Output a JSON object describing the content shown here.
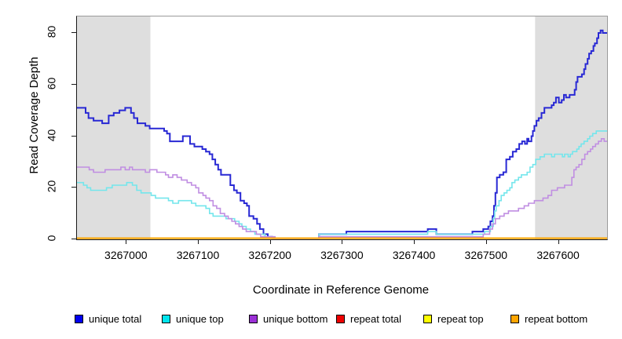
{
  "figure": {
    "x_axis_label": "Coordinate in Reference Genome",
    "y_axis_label": "Read Coverage Depth"
  },
  "legend": {
    "items": [
      {
        "label": "unique total",
        "color": "#0000EE"
      },
      {
        "label": "unique top",
        "color": "#00E5EE"
      },
      {
        "label": "unique bottom",
        "color": "#9B30D6"
      },
      {
        "label": "repeat total",
        "color": "#EE0000"
      },
      {
        "label": "repeat top",
        "color": "#FFFF00"
      },
      {
        "label": "repeat bottom",
        "color": "#FFA500"
      }
    ]
  },
  "chart_data": {
    "type": "line",
    "subtype": "step",
    "title": "",
    "xlabel": "Coordinate in Reference Genome",
    "ylabel": "Read Coverage Depth",
    "xlim": [
      3266931,
      3267667
    ],
    "ylim": [
      0,
      86.4
    ],
    "x_ticks": [
      3267000,
      3267100,
      3267200,
      3267300,
      3267400,
      3267500,
      3267600
    ],
    "y_ticks": [
      0,
      20,
      40,
      60,
      80
    ],
    "grid": false,
    "legend_position": "bottom",
    "shaded_region_color": "#DEDEDE",
    "shaded_regions": [
      {
        "from": 3266931,
        "to": 3267033
      },
      {
        "from": 3267567,
        "to": 3267667
      }
    ],
    "series": [
      {
        "name": "unique total",
        "line_color": "#2828D4",
        "width": 2,
        "points": [
          [
            3266931,
            51
          ],
          [
            3266943,
            49
          ],
          [
            3266947,
            47
          ],
          [
            3266954,
            46
          ],
          [
            3266966,
            45
          ],
          [
            3266975,
            48
          ],
          [
            3266982,
            49
          ],
          [
            3266990,
            50
          ],
          [
            3266998,
            51
          ],
          [
            3267006,
            49
          ],
          [
            3267010,
            47
          ],
          [
            3267015,
            45
          ],
          [
            3267026,
            44
          ],
          [
            3267032,
            43
          ],
          [
            3267052,
            42
          ],
          [
            3267056,
            41
          ],
          [
            3267060,
            38
          ],
          [
            3267078,
            40
          ],
          [
            3267088,
            37
          ],
          [
            3267094,
            36
          ],
          [
            3267105,
            35
          ],
          [
            3267110,
            34
          ],
          [
            3267115,
            33
          ],
          [
            3267119,
            31
          ],
          [
            3267123,
            29
          ],
          [
            3267127,
            27
          ],
          [
            3267131,
            25
          ],
          [
            3267144,
            21
          ],
          [
            3267149,
            19
          ],
          [
            3267153,
            18
          ],
          [
            3267158,
            15
          ],
          [
            3267163,
            14
          ],
          [
            3267167,
            13
          ],
          [
            3267170,
            9
          ],
          [
            3267176,
            8
          ],
          [
            3267181,
            6
          ],
          [
            3267185,
            4
          ],
          [
            3267190,
            2
          ],
          [
            3267196,
            1
          ],
          [
            3267202,
            0
          ],
          [
            3267267,
            2
          ],
          [
            3267305,
            3
          ],
          [
            3267418,
            4
          ],
          [
            3267430,
            2
          ],
          [
            3267480,
            3
          ],
          [
            3267495,
            4
          ],
          [
            3267502,
            5
          ],
          [
            3267505,
            7
          ],
          [
            3267508,
            9
          ],
          [
            3267510,
            13
          ],
          [
            3267512,
            18
          ],
          [
            3267514,
            24
          ],
          [
            3267518,
            25
          ],
          [
            3267523,
            26
          ],
          [
            3267527,
            31
          ],
          [
            3267532,
            32
          ],
          [
            3267536,
            34
          ],
          [
            3267541,
            35
          ],
          [
            3267545,
            37
          ],
          [
            3267549,
            38
          ],
          [
            3267553,
            37
          ],
          [
            3267556,
            39
          ],
          [
            3267558,
            38
          ],
          [
            3267562,
            40
          ],
          [
            3267564,
            42
          ],
          [
            3267566,
            44
          ],
          [
            3267569,
            46
          ],
          [
            3267572,
            47
          ],
          [
            3267576,
            49
          ],
          [
            3267580,
            51
          ],
          [
            3267590,
            52
          ],
          [
            3267593,
            53
          ],
          [
            3267596,
            55
          ],
          [
            3267600,
            53
          ],
          [
            3267604,
            54
          ],
          [
            3267607,
            56
          ],
          [
            3267610,
            55
          ],
          [
            3267615,
            56
          ],
          [
            3267622,
            58
          ],
          [
            3267624,
            61
          ],
          [
            3267626,
            63
          ],
          [
            3267632,
            64
          ],
          [
            3267635,
            66
          ],
          [
            3267637,
            68
          ],
          [
            3267640,
            70
          ],
          [
            3267642,
            72
          ],
          [
            3267645,
            73
          ],
          [
            3267648,
            75
          ],
          [
            3267650,
            76
          ],
          [
            3267653,
            78
          ],
          [
            3267655,
            80
          ],
          [
            3267658,
            81
          ],
          [
            3267661,
            80
          ],
          [
            3267667,
            80
          ]
        ]
      },
      {
        "name": "unique top",
        "line_color": "#74E6EC",
        "width": 1.6,
        "points": [
          [
            3266931,
            22
          ],
          [
            3266940,
            21
          ],
          [
            3266945,
            20
          ],
          [
            3266950,
            19
          ],
          [
            3266972,
            20
          ],
          [
            3266980,
            21
          ],
          [
            3267000,
            22
          ],
          [
            3267008,
            21
          ],
          [
            3267014,
            19
          ],
          [
            3267020,
            18
          ],
          [
            3267034,
            17
          ],
          [
            3267040,
            16
          ],
          [
            3267058,
            15
          ],
          [
            3267064,
            14
          ],
          [
            3267072,
            15
          ],
          [
            3267090,
            14
          ],
          [
            3267096,
            13
          ],
          [
            3267110,
            12
          ],
          [
            3267115,
            10
          ],
          [
            3267120,
            9
          ],
          [
            3267138,
            8
          ],
          [
            3267150,
            7
          ],
          [
            3267156,
            6
          ],
          [
            3267160,
            5
          ],
          [
            3267166,
            4
          ],
          [
            3267172,
            3
          ],
          [
            3267178,
            2
          ],
          [
            3267192,
            1
          ],
          [
            3267200,
            0
          ],
          [
            3267267,
            2
          ],
          [
            3267418,
            3
          ],
          [
            3267430,
            2
          ],
          [
            3267497,
            3
          ],
          [
            3267505,
            5
          ],
          [
            3267509,
            8
          ],
          [
            3267511,
            11
          ],
          [
            3267513,
            13
          ],
          [
            3267517,
            15
          ],
          [
            3267520,
            17
          ],
          [
            3267524,
            18
          ],
          [
            3267528,
            19
          ],
          [
            3267532,
            20
          ],
          [
            3267535,
            22
          ],
          [
            3267539,
            23
          ],
          [
            3267544,
            24
          ],
          [
            3267548,
            25
          ],
          [
            3267556,
            26
          ],
          [
            3267560,
            28
          ],
          [
            3267564,
            29
          ],
          [
            3267568,
            31
          ],
          [
            3267574,
            32
          ],
          [
            3267580,
            33
          ],
          [
            3267590,
            32
          ],
          [
            3267594,
            33
          ],
          [
            3267605,
            32
          ],
          [
            3267608,
            33
          ],
          [
            3267613,
            32
          ],
          [
            3267616,
            33
          ],
          [
            3267619,
            34
          ],
          [
            3267625,
            35
          ],
          [
            3267628,
            36
          ],
          [
            3267631,
            37
          ],
          [
            3267635,
            38
          ],
          [
            3267640,
            39
          ],
          [
            3267643,
            40
          ],
          [
            3267647,
            41
          ],
          [
            3267652,
            42
          ],
          [
            3267667,
            42
          ]
        ]
      },
      {
        "name": "unique bottom",
        "line_color": "#C08EE2",
        "width": 1.6,
        "points": [
          [
            3266931,
            28
          ],
          [
            3266948,
            27
          ],
          [
            3266954,
            26
          ],
          [
            3266970,
            27
          ],
          [
            3266992,
            28
          ],
          [
            3266998,
            27
          ],
          [
            3267004,
            28
          ],
          [
            3267008,
            27
          ],
          [
            3267026,
            26
          ],
          [
            3267032,
            27
          ],
          [
            3267042,
            26
          ],
          [
            3267054,
            25
          ],
          [
            3267058,
            24
          ],
          [
            3267064,
            25
          ],
          [
            3267070,
            24
          ],
          [
            3267076,
            23
          ],
          [
            3267084,
            22
          ],
          [
            3267090,
            21
          ],
          [
            3267096,
            20
          ],
          [
            3267100,
            18
          ],
          [
            3267106,
            17
          ],
          [
            3267110,
            16
          ],
          [
            3267115,
            15
          ],
          [
            3267120,
            13
          ],
          [
            3267125,
            12
          ],
          [
            3267130,
            10
          ],
          [
            3267136,
            9
          ],
          [
            3267141,
            8
          ],
          [
            3267146,
            7
          ],
          [
            3267151,
            6
          ],
          [
            3267156,
            5
          ],
          [
            3267161,
            4
          ],
          [
            3267166,
            3
          ],
          [
            3267180,
            2
          ],
          [
            3267186,
            1
          ],
          [
            3267206,
            0
          ],
          [
            3267267,
            1
          ],
          [
            3267495,
            2
          ],
          [
            3267504,
            4
          ],
          [
            3267508,
            6
          ],
          [
            3267512,
            8
          ],
          [
            3267518,
            9
          ],
          [
            3267524,
            10
          ],
          [
            3267530,
            11
          ],
          [
            3267544,
            12
          ],
          [
            3267552,
            13
          ],
          [
            3267558,
            14
          ],
          [
            3267566,
            15
          ],
          [
            3267578,
            16
          ],
          [
            3267585,
            17
          ],
          [
            3267590,
            19
          ],
          [
            3267598,
            20
          ],
          [
            3267608,
            21
          ],
          [
            3267618,
            24
          ],
          [
            3267621,
            27
          ],
          [
            3267624,
            28
          ],
          [
            3267628,
            29
          ],
          [
            3267632,
            31
          ],
          [
            3267636,
            33
          ],
          [
            3267640,
            34
          ],
          [
            3267644,
            35
          ],
          [
            3267647,
            36
          ],
          [
            3267651,
            37
          ],
          [
            3267655,
            38
          ],
          [
            3267659,
            39
          ],
          [
            3267663,
            38
          ],
          [
            3267667,
            38
          ]
        ]
      },
      {
        "name": "repeat total",
        "line_color": "#EE0000",
        "width": 1.6,
        "points": [
          [
            3266931,
            0
          ],
          [
            3267667,
            0
          ]
        ]
      },
      {
        "name": "repeat top",
        "line_color": "#FFFF00",
        "width": 1.6,
        "points": [
          [
            3266931,
            0
          ],
          [
            3267667,
            0
          ]
        ]
      },
      {
        "name": "repeat bottom",
        "line_color": "#FFA500",
        "width": 2,
        "points": [
          [
            3266931,
            0
          ],
          [
            3267667,
            0
          ]
        ]
      }
    ]
  }
}
